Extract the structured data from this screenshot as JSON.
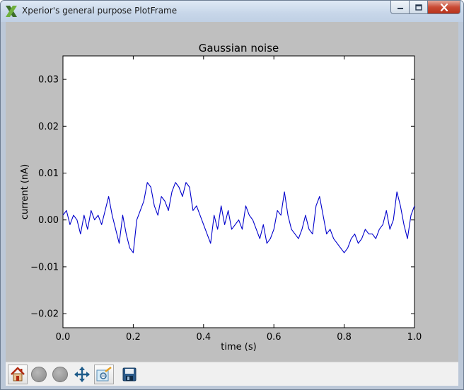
{
  "window": {
    "title": "Xperior's general purpose PlotFrame",
    "icon": "xperior-x-icon",
    "controls": [
      "minimize",
      "maximize",
      "close"
    ]
  },
  "toolbar": {
    "buttons": [
      {
        "icon": "home-icon",
        "label": "Home"
      },
      {
        "icon": "back-circle-icon",
        "label": "Back"
      },
      {
        "icon": "forward-circle-icon",
        "label": "Forward"
      },
      {
        "icon": "pan-icon",
        "label": "Pan"
      },
      {
        "icon": "zoom-icon",
        "label": "Zoom"
      },
      {
        "icon": "save-icon",
        "label": "Save"
      }
    ]
  },
  "chart_data": {
    "type": "line",
    "title": "Gaussian noise",
    "xlabel": "time (s)",
    "ylabel": "current (nA)",
    "xlim": [
      0.0,
      1.0
    ],
    "ylim": [
      -0.023,
      0.035
    ],
    "xticks": [
      "0.0",
      "0.2",
      "0.4",
      "0.6",
      "0.8",
      "1.0"
    ],
    "xtick_values": [
      0.0,
      0.2,
      0.4,
      0.6,
      0.8,
      1.0
    ],
    "yticks": [
      "0.03",
      "0.02",
      "0.01",
      "0.00",
      "−0.01",
      "−0.02"
    ],
    "ytick_values": [
      0.03,
      0.02,
      0.01,
      0.0,
      -0.01,
      -0.02
    ],
    "line_color": "#0000cc",
    "grid": false,
    "series": [
      {
        "x": [
          0.0,
          0.01,
          0.02,
          0.03,
          0.04,
          0.05,
          0.06,
          0.07,
          0.08,
          0.09,
          0.1,
          0.11,
          0.12,
          0.13,
          0.14,
          0.15,
          0.16,
          0.17,
          0.18,
          0.19,
          0.2,
          0.21,
          0.22,
          0.23,
          0.24,
          0.25,
          0.26,
          0.27,
          0.28,
          0.29,
          0.3,
          0.31,
          0.32,
          0.33,
          0.34,
          0.35,
          0.36,
          0.37,
          0.38,
          0.39,
          0.4,
          0.41,
          0.42,
          0.43,
          0.44,
          0.45,
          0.46,
          0.47,
          0.48,
          0.49,
          0.5,
          0.51,
          0.52,
          0.53,
          0.54,
          0.55,
          0.56,
          0.57,
          0.58,
          0.59,
          0.6,
          0.61,
          0.62,
          0.63,
          0.64,
          0.65,
          0.66,
          0.67,
          0.68,
          0.69,
          0.7,
          0.71,
          0.72,
          0.73,
          0.74,
          0.75,
          0.76,
          0.77,
          0.78,
          0.79,
          0.8,
          0.81,
          0.82,
          0.83,
          0.84,
          0.85,
          0.86,
          0.87,
          0.88,
          0.89,
          0.9,
          0.91,
          0.92,
          0.93,
          0.94,
          0.95,
          0.96,
          0.97,
          0.98,
          0.99,
          1.0
        ],
        "y": [
          0.001,
          0.002,
          -0.001,
          0.001,
          0.0,
          -0.003,
          0.001,
          -0.002,
          0.002,
          0.0,
          0.001,
          -0.001,
          0.002,
          0.005,
          0.001,
          -0.002,
          -0.005,
          0.001,
          -0.003,
          -0.006,
          -0.007,
          0.0,
          0.002,
          0.004,
          0.008,
          0.007,
          0.003,
          0.001,
          0.005,
          0.004,
          0.002,
          0.006,
          0.008,
          0.007,
          0.005,
          0.008,
          0.007,
          0.002,
          0.003,
          0.001,
          -0.001,
          -0.003,
          -0.005,
          0.001,
          -0.002,
          0.003,
          -0.001,
          0.002,
          -0.002,
          -0.001,
          0.0,
          -0.002,
          0.003,
          0.001,
          0.0,
          -0.002,
          -0.004,
          -0.001,
          -0.005,
          -0.004,
          -0.002,
          0.002,
          0.001,
          0.006,
          0.001,
          -0.002,
          -0.003,
          -0.004,
          -0.002,
          0.001,
          -0.002,
          -0.003,
          0.003,
          0.005,
          0.001,
          -0.003,
          -0.002,
          -0.004,
          -0.005,
          -0.006,
          -0.007,
          -0.006,
          -0.004,
          -0.003,
          -0.005,
          -0.004,
          -0.002,
          -0.003,
          -0.003,
          -0.004,
          -0.002,
          -0.001,
          0.002,
          -0.002,
          0.0,
          0.006,
          0.003,
          -0.001,
          -0.004,
          0.001,
          0.003
        ]
      }
    ]
  }
}
